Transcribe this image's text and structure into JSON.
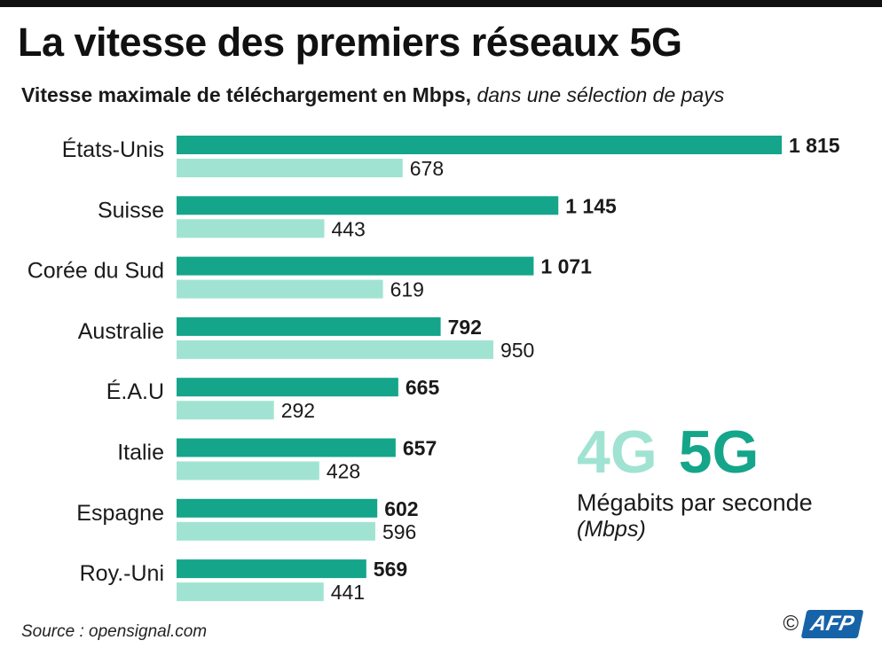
{
  "title": "La vitesse des premiers réseaux 5G",
  "subtitle": "Vitesse maximale de téléchargement en Mbps,",
  "subtitle_note": "dans une sélection de pays",
  "legend": {
    "label_4g": "4G",
    "label_5g": "5G",
    "unit": "Mégabits par seconde",
    "unit_abbr": "(Mbps)"
  },
  "source": "Source : opensignal.com",
  "credit": {
    "copyright": "©",
    "agency": "AFP"
  },
  "colors": {
    "5g": "#14a58a",
    "4g": "#a1e3d2"
  },
  "chart_data": {
    "type": "bar",
    "orientation": "horizontal",
    "categories": [
      "États-Unis",
      "Suisse",
      "Corée du Sud",
      "Australie",
      "É.A.U",
      "Italie",
      "Espagne",
      "Roy.-Uni"
    ],
    "series": [
      {
        "name": "5G",
        "values": [
          1815,
          1145,
          1071,
          792,
          665,
          657,
          602,
          569
        ],
        "labels": [
          "1 815",
          "1 145",
          "1 071",
          "792",
          "665",
          "657",
          "602",
          "569"
        ]
      },
      {
        "name": "4G",
        "values": [
          678,
          443,
          619,
          950,
          292,
          428,
          596,
          441
        ],
        "labels": [
          "678",
          "443",
          "619",
          "950",
          "292",
          "428",
          "596",
          "441"
        ]
      }
    ],
    "xlim": [
      0,
      1815
    ],
    "grid": false,
    "legend_position": "bottom-right"
  }
}
